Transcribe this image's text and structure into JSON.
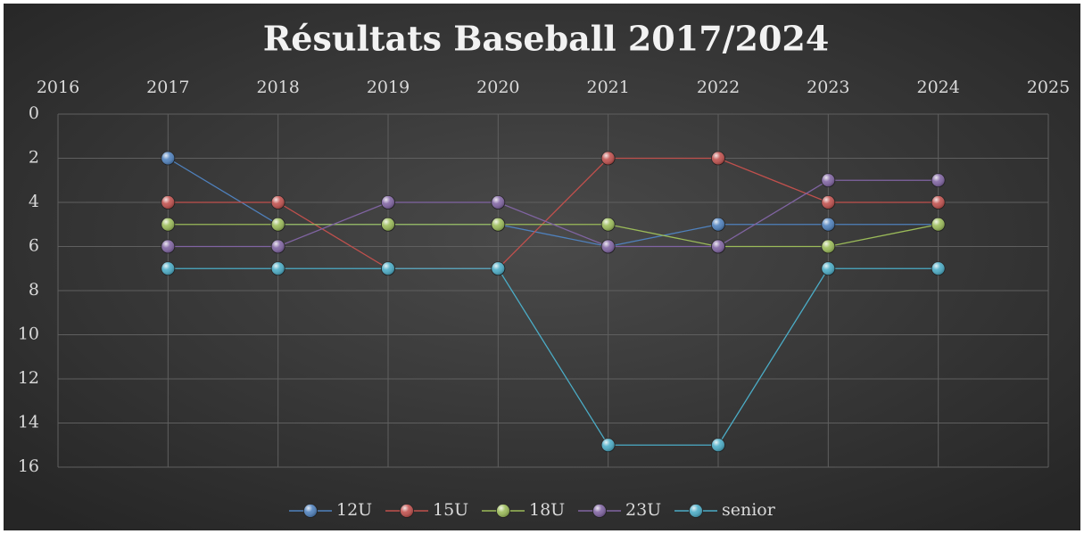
{
  "chart_data": {
    "type": "line",
    "title": "Résultats Baseball 2017/2024",
    "x": [
      2017,
      2018,
      2019,
      2020,
      2021,
      2022,
      2023,
      2024
    ],
    "series": [
      {
        "name": "12U",
        "color": "#4f81bd",
        "values": [
          2,
          5,
          5,
          5,
          6,
          5,
          5,
          5
        ]
      },
      {
        "name": "15U",
        "color": "#c0504d",
        "values": [
          4,
          4,
          7,
          7,
          2,
          2,
          4,
          4
        ]
      },
      {
        "name": "18U",
        "color": "#9bbb59",
        "values": [
          5,
          5,
          5,
          5,
          5,
          6,
          6,
          5
        ]
      },
      {
        "name": "23U",
        "color": "#8064a2",
        "values": [
          6,
          6,
          4,
          4,
          6,
          6,
          3,
          3
        ]
      },
      {
        "name": "senior",
        "color": "#4bacc6",
        "values": [
          7,
          7,
          7,
          7,
          15,
          15,
          7,
          7
        ]
      }
    ],
    "xlim": [
      2016,
      2025
    ],
    "xticks": [
      2016,
      2017,
      2018,
      2019,
      2020,
      2021,
      2022,
      2023,
      2024,
      2025
    ],
    "ylim": [
      0,
      16
    ],
    "yticks": [
      0,
      2,
      4,
      6,
      8,
      10,
      12,
      14,
      16
    ],
    "y_reversed": true,
    "x_axis_position": "top",
    "grid": true,
    "legend": "bottom"
  }
}
